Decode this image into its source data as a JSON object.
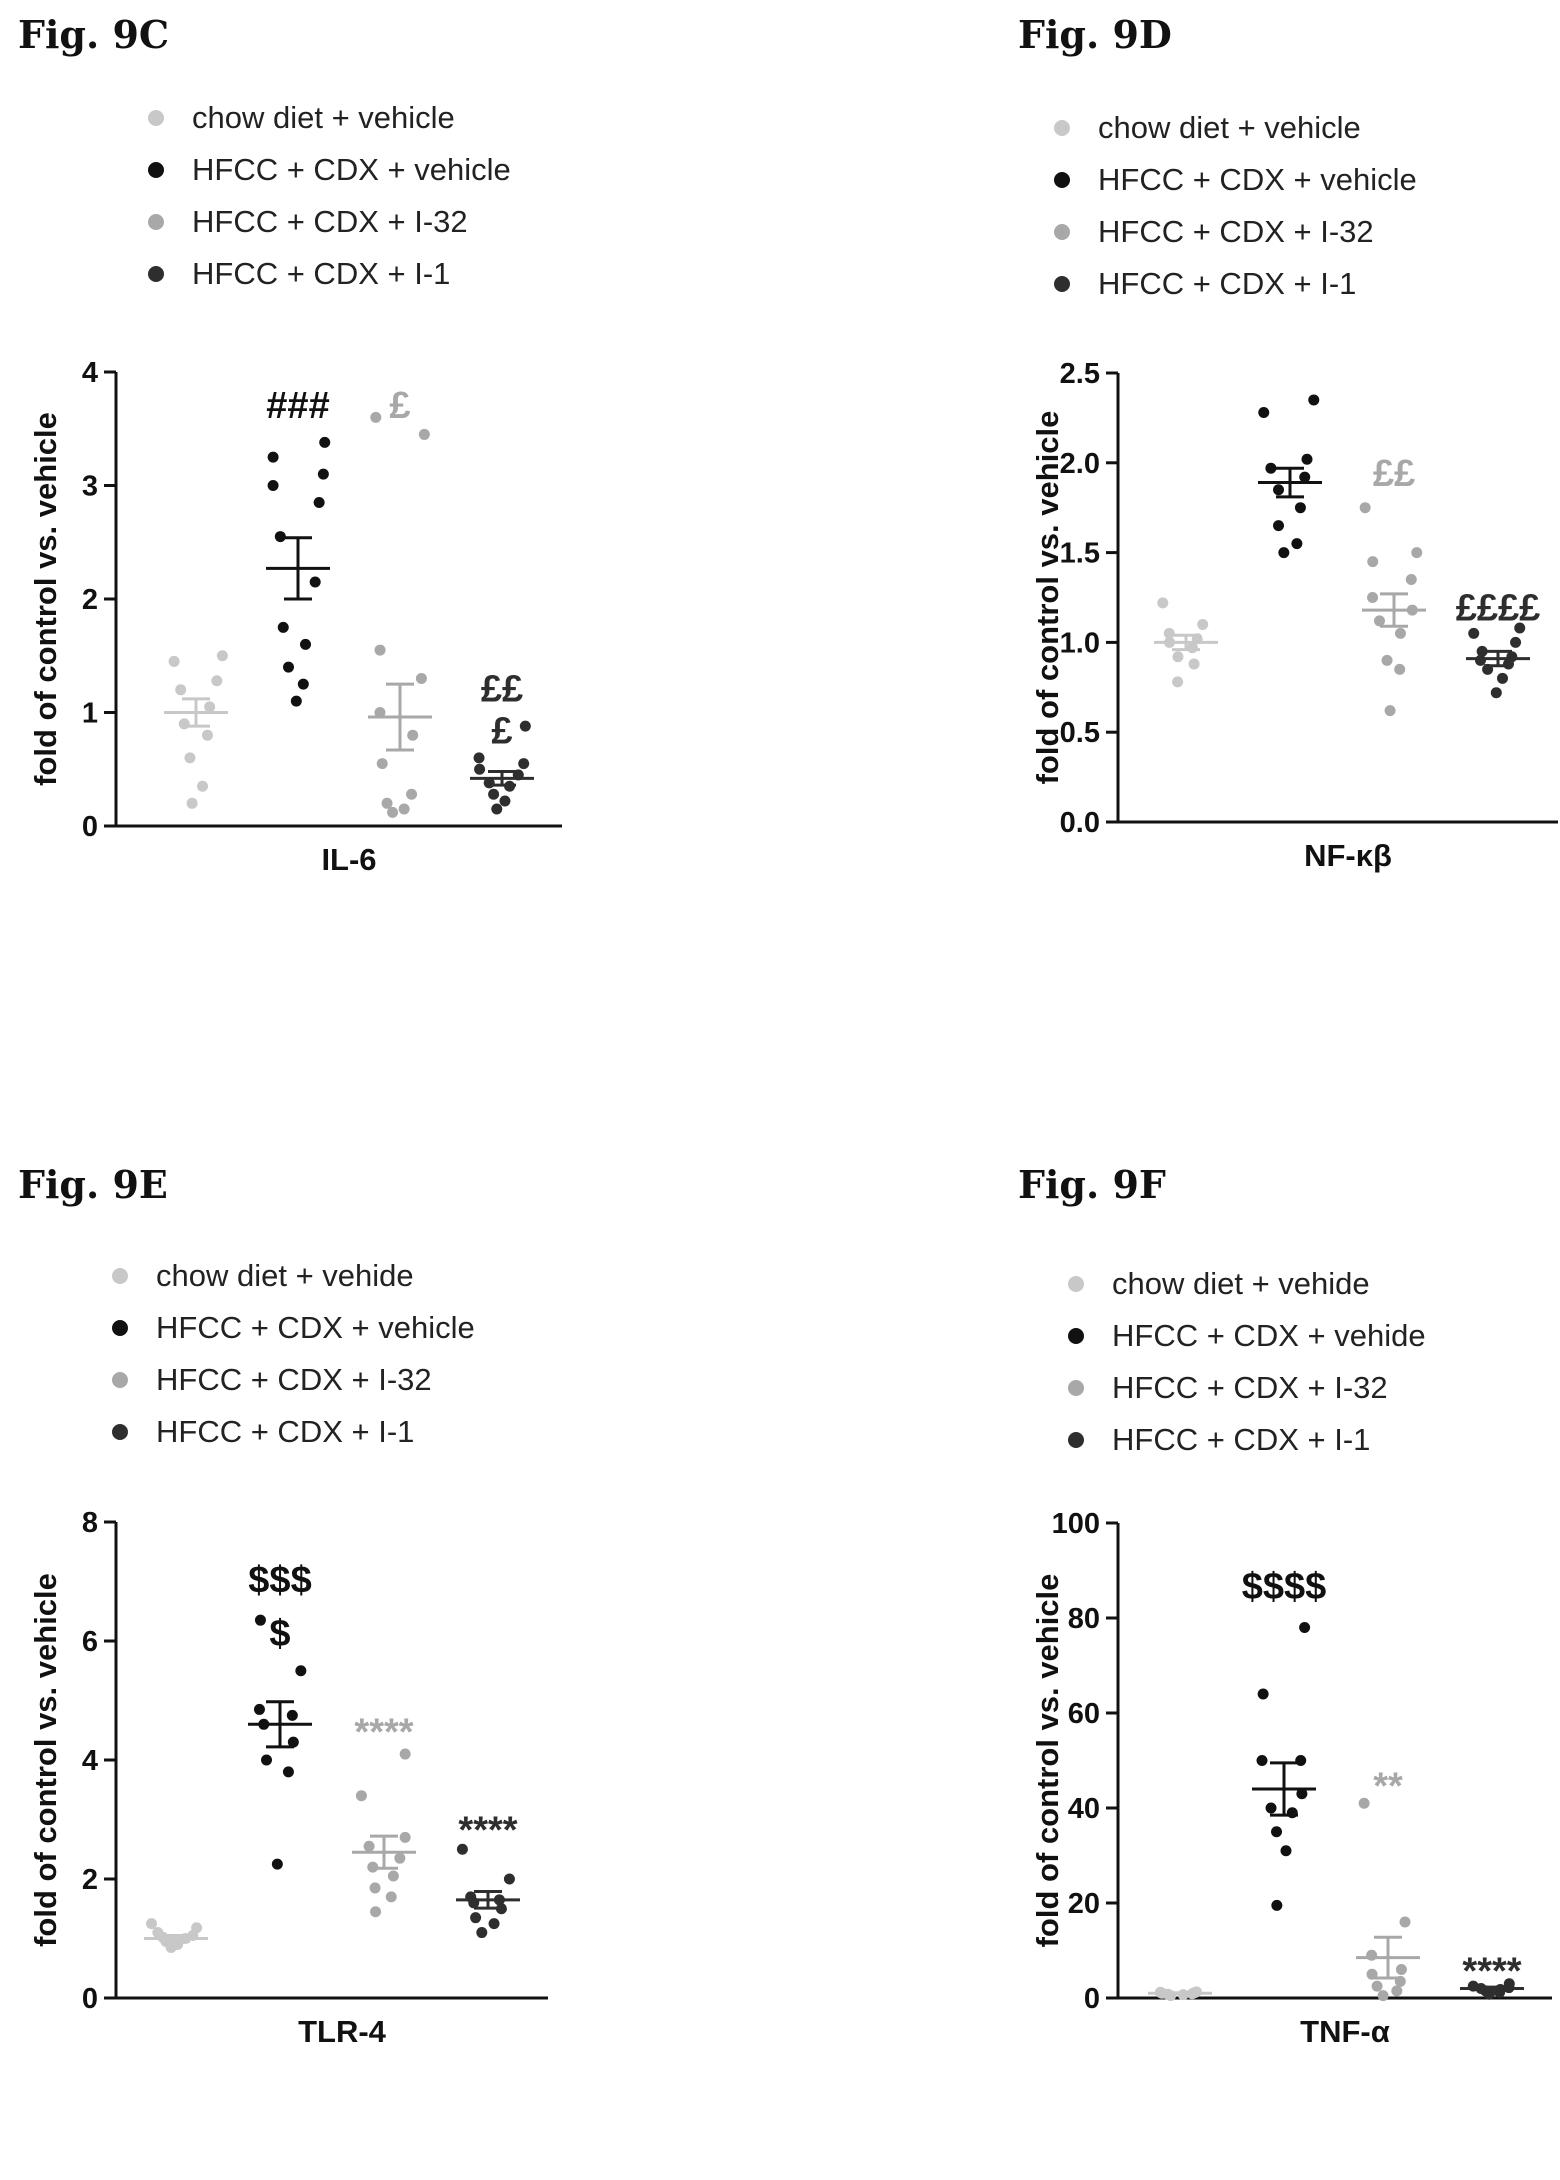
{
  "colors": {
    "chow": "#c8c8c8",
    "vehicle": "#111111",
    "i32": "#a8a8a8",
    "i1": "#2e2e2e"
  },
  "chart_data": [
    {
      "panel_title": "Fig. 9C",
      "type": "scatter",
      "legend": [
        "chow diet + vehicle",
        "HFCC + CDX + vehicle",
        "HFCC + CDX + I-32",
        "HFCC + CDX + I-1"
      ],
      "ylabel": "fold of control vs. vehicle",
      "xlabel": "IL-6",
      "ylim": [
        0,
        4
      ],
      "yticks": [
        0,
        1,
        2,
        3,
        4
      ],
      "yticklabels": [
        "0",
        "1",
        "2",
        "3",
        "4"
      ],
      "series": [
        {
          "name": "chow diet + vehicle",
          "mean": 1.0,
          "sem": 0.12,
          "points": [
            0.2,
            0.35,
            0.6,
            0.8,
            0.9,
            1.05,
            1.2,
            1.28,
            1.45,
            1.5
          ]
        },
        {
          "name": "HFCC + CDX + vehicle",
          "mean": 2.27,
          "sem": 0.27,
          "points": [
            1.1,
            1.25,
            1.4,
            1.6,
            1.75,
            2.15,
            2.55,
            2.85,
            3.0,
            3.1,
            3.25,
            3.38
          ]
        },
        {
          "name": "HFCC + CDX + I-32",
          "mean": 0.96,
          "sem": 0.29,
          "points": [
            0.12,
            0.15,
            0.2,
            0.28,
            0.55,
            0.8,
            1.0,
            1.3,
            1.55,
            3.45,
            3.6
          ]
        },
        {
          "name": "HFCC + CDX + I-1",
          "mean": 0.42,
          "sem": 0.06,
          "points": [
            0.15,
            0.22,
            0.28,
            0.35,
            0.38,
            0.45,
            0.5,
            0.55,
            0.6,
            0.88
          ]
        }
      ],
      "annotations": [
        {
          "text": "###",
          "series": 1,
          "y": 3.72
        },
        {
          "text": "£",
          "series": 2,
          "y": 3.72
        },
        {
          "text": "££",
          "series": 3,
          "y": 1.22
        },
        {
          "text": "£",
          "series": 3,
          "y": 0.85
        }
      ]
    },
    {
      "panel_title": "Fig. 9D",
      "type": "scatter",
      "legend": [
        "chow diet + vehicle",
        "HFCC + CDX + vehicle",
        "HFCC + CDX + I-32",
        "HFCC + CDX + I-1"
      ],
      "ylabel": "fold of control vs. vehicle",
      "xlabel": "NF-κβ",
      "ylim": [
        0,
        2.5
      ],
      "yticks": [
        0,
        0.5,
        1.0,
        1.5,
        2.0,
        2.5
      ],
      "yticklabels": [
        "0.0",
        "0.5",
        "1.0",
        "1.5",
        "2.0",
        "2.5"
      ],
      "series": [
        {
          "name": "chow diet + vehicle",
          "mean": 1.0,
          "sem": 0.04,
          "points": [
            0.78,
            0.88,
            0.92,
            0.97,
            1.0,
            1.02,
            1.05,
            1.1,
            1.22
          ]
        },
        {
          "name": "HFCC + CDX + vehicle",
          "mean": 1.89,
          "sem": 0.08,
          "points": [
            1.5,
            1.55,
            1.65,
            1.75,
            1.85,
            1.92,
            1.97,
            2.02,
            2.28,
            2.35
          ]
        },
        {
          "name": "HFCC + CDX + I-32",
          "mean": 1.18,
          "sem": 0.09,
          "points": [
            0.62,
            0.85,
            0.9,
            1.05,
            1.12,
            1.18,
            1.25,
            1.35,
            1.45,
            1.5,
            1.75
          ]
        },
        {
          "name": "HFCC + CDX + I-1",
          "mean": 0.91,
          "sem": 0.04,
          "points": [
            0.72,
            0.8,
            0.85,
            0.88,
            0.9,
            0.92,
            0.95,
            1.0,
            1.05,
            1.08
          ]
        }
      ],
      "annotations": [
        {
          "text": "££",
          "series": 2,
          "y": 1.95
        },
        {
          "text": "££££",
          "series": 3,
          "y": 1.2
        }
      ]
    },
    {
      "panel_title": "Fig. 9E",
      "type": "scatter",
      "legend": [
        "chow diet + vehide",
        "HFCC + CDX + vehicle",
        "HFCC + CDX + I-32",
        "HFCC + CDX + I-1"
      ],
      "ylabel": "fold of control vs. vehicle",
      "xlabel": "TLR-4",
      "ylim": [
        0,
        8
      ],
      "yticks": [
        0,
        2,
        4,
        6,
        8
      ],
      "yticklabels": [
        "0",
        "2",
        "4",
        "6",
        "8"
      ],
      "series": [
        {
          "name": "chow diet + vehide",
          "mean": 1.0,
          "sem": 0.05,
          "points": [
            0.85,
            0.9,
            0.95,
            1.0,
            1.02,
            1.05,
            1.1,
            1.18,
            1.25
          ]
        },
        {
          "name": "HFCC + CDX + vehicle",
          "mean": 4.6,
          "sem": 0.38,
          "points": [
            2.25,
            3.8,
            4.0,
            4.3,
            4.6,
            4.75,
            4.85,
            5.5,
            6.35
          ]
        },
        {
          "name": "HFCC + CDX + I-32",
          "mean": 2.45,
          "sem": 0.27,
          "points": [
            1.45,
            1.7,
            1.85,
            2.05,
            2.2,
            2.35,
            2.55,
            2.7,
            3.4,
            4.1
          ]
        },
        {
          "name": "HFCC + CDX + I-1",
          "mean": 1.65,
          "sem": 0.14,
          "points": [
            1.1,
            1.25,
            1.35,
            1.5,
            1.6,
            1.65,
            1.7,
            2.0,
            2.5
          ]
        }
      ],
      "annotations": [
        {
          "text": "$$$",
          "series": 1,
          "y": 7.05
        },
        {
          "text": "$",
          "series": 1,
          "y": 6.15
        },
        {
          "text": "****",
          "series": 2,
          "y": 4.5
        },
        {
          "text": "****",
          "series": 3,
          "y": 2.85
        }
      ]
    },
    {
      "panel_title": "Fig. 9F",
      "type": "scatter",
      "legend": [
        "chow diet + vehide",
        "HFCC + CDX + vehide",
        "HFCC + CDX + I-32",
        "HFCC + CDX + I-1"
      ],
      "ylabel": "fold of control vs. vehicle",
      "xlabel": "TNF-α",
      "ylim": [
        0,
        100
      ],
      "yticks": [
        0,
        20,
        40,
        60,
        80,
        100
      ],
      "yticklabels": [
        "0",
        "20",
        "40",
        "60",
        "80",
        "100"
      ],
      "series": [
        {
          "name": "chow diet + vehide",
          "mean": 1.0,
          "sem": 0.1,
          "points": [
            0.5,
            0.7,
            0.8,
            0.9,
            1.0,
            1.1,
            1.2,
            1.3
          ]
        },
        {
          "name": "HFCC + CDX + vehide",
          "mean": 44,
          "sem": 5.5,
          "points": [
            19.5,
            31,
            35,
            39,
            40,
            43,
            50,
            50,
            64,
            78
          ]
        },
        {
          "name": "HFCC + CDX + I-32",
          "mean": 8.5,
          "sem": 4.3,
          "points": [
            0.5,
            1.5,
            2.5,
            3.5,
            5,
            6,
            9,
            16,
            41
          ]
        },
        {
          "name": "HFCC + CDX + I-1",
          "mean": 2.0,
          "sem": 0.3,
          "points": [
            0.8,
            1.2,
            1.5,
            1.8,
            2.0,
            2.2,
            2.5,
            3.0
          ]
        }
      ],
      "annotations": [
        {
          "text": "$$$$",
          "series": 1,
          "y": 87
        },
        {
          "text": "**",
          "series": 2,
          "y": 45
        },
        {
          "text": "****",
          "series": 3,
          "y": 6
        }
      ]
    }
  ]
}
